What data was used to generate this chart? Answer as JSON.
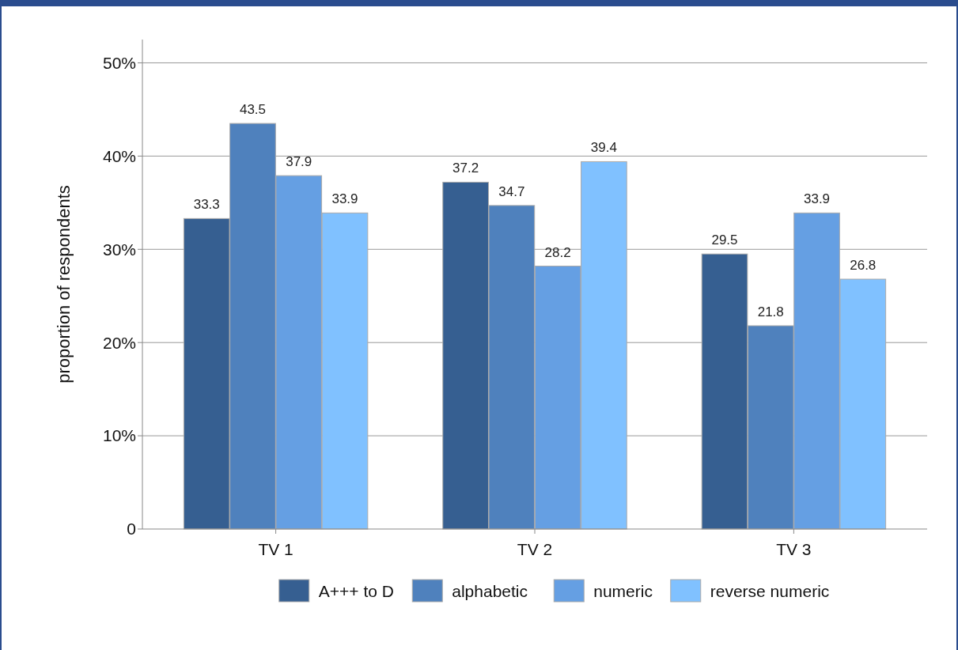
{
  "chart_data": {
    "type": "bar",
    "ylabel": "proportion of respondents",
    "categories": [
      "TV 1",
      "TV 2",
      "TV 3"
    ],
    "series": [
      {
        "name": "A+++ to D",
        "color": "#365f91",
        "values": [
          33.3,
          37.2,
          29.5
        ]
      },
      {
        "name": "alphabetic",
        "color": "#4f81bd",
        "values": [
          43.5,
          34.7,
          21.8
        ]
      },
      {
        "name": "numeric",
        "color": "#659fe3",
        "values": [
          37.9,
          28.2,
          33.9
        ]
      },
      {
        "name": "reverse numeric",
        "color": "#80c1ff",
        "values": [
          33.9,
          39.4,
          26.8
        ]
      }
    ],
    "ylim": [
      0,
      52.5
    ],
    "yticks": [
      0,
      {
        "value": 10,
        "label": "10%"
      },
      {
        "value": 20,
        "label": "20%"
      },
      {
        "value": 30,
        "label": "30%"
      },
      {
        "value": 40,
        "label": "40%"
      },
      {
        "value": 50,
        "label": "50%"
      }
    ],
    "grid": "y",
    "legend": "bottom",
    "data_labels": true
  }
}
